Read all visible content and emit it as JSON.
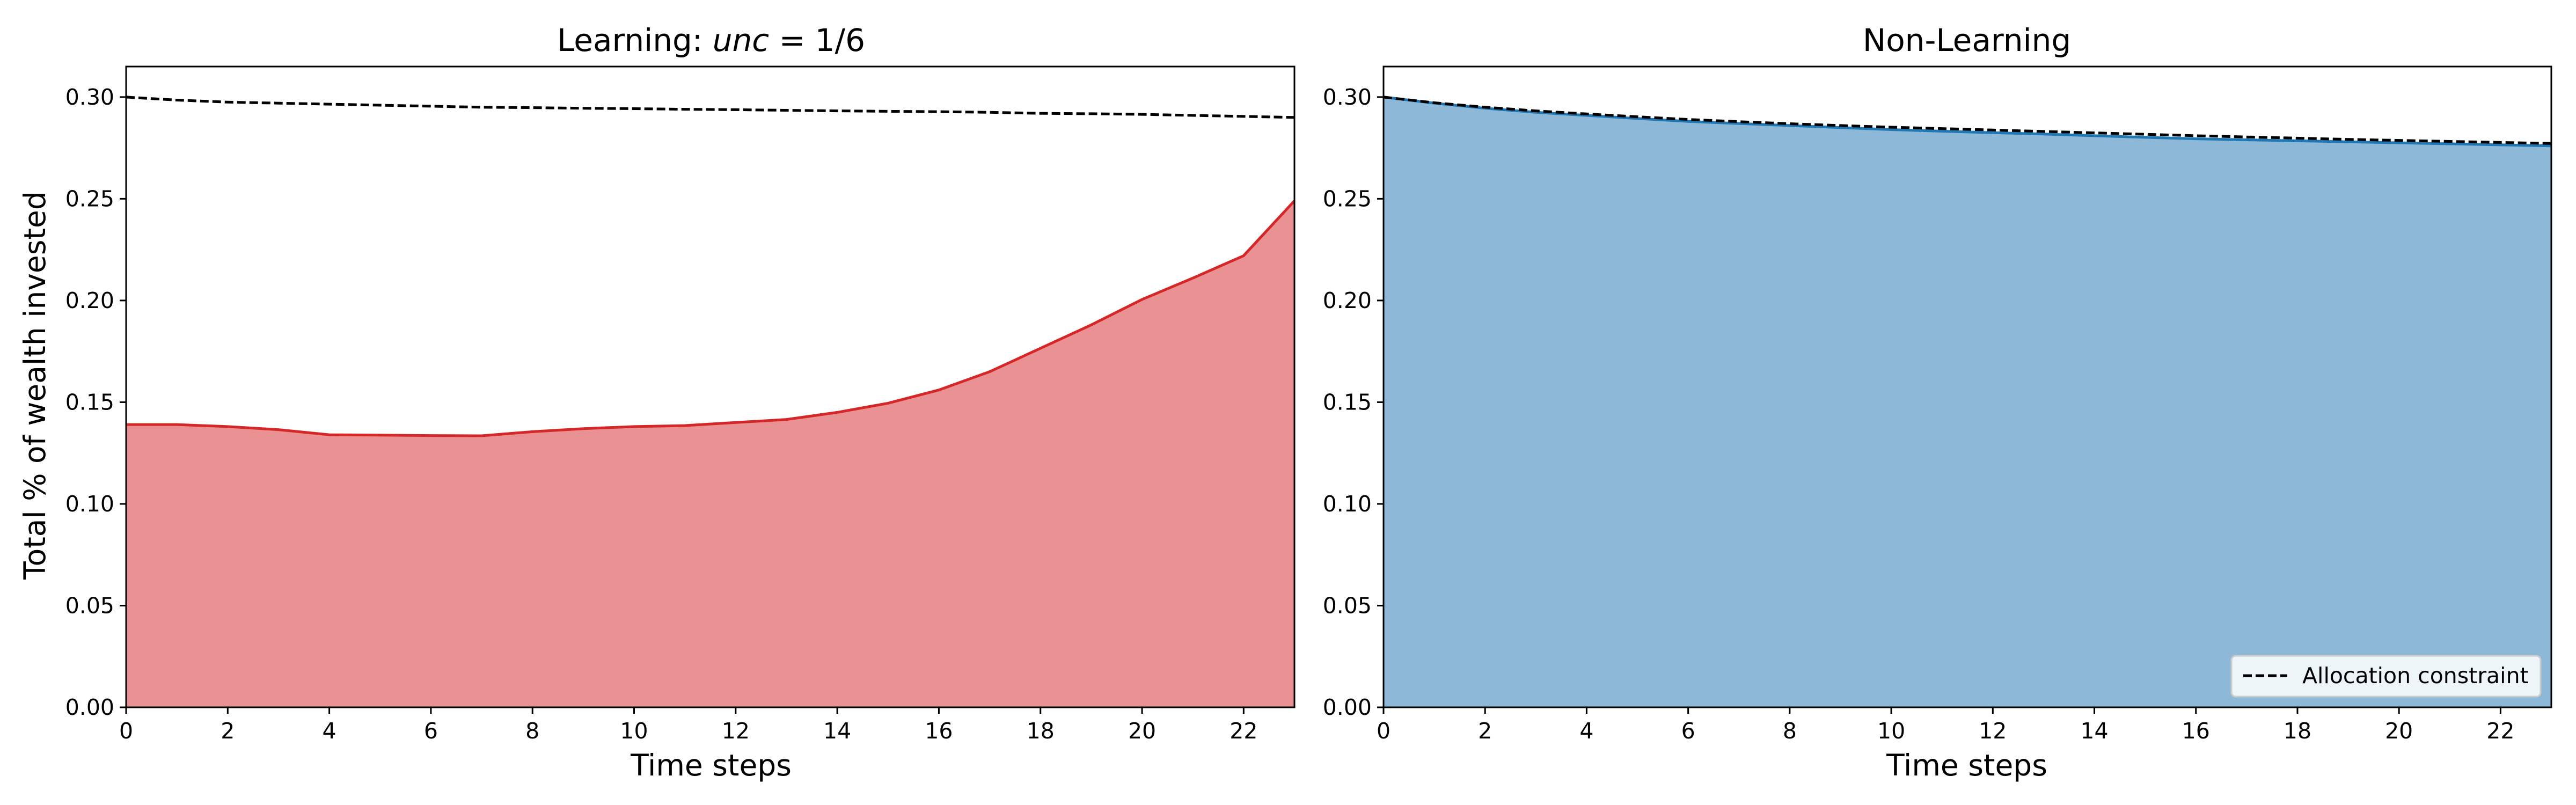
{
  "chart_data": [
    {
      "type": "area",
      "title_prefix": "Learning: ",
      "title_italic": "unc",
      "title_suffix": " = 1/6",
      "xlabel": "Time steps",
      "ylabel": "Total % of wealth invested",
      "xlim": [
        0,
        23
      ],
      "ylim": [
        0,
        0.315
      ],
      "xticks": [
        "0",
        "2",
        "4",
        "6",
        "8",
        "10",
        "12",
        "14",
        "16",
        "18",
        "20",
        "22"
      ],
      "yticks": [
        "0.00",
        "0.05",
        "0.10",
        "0.15",
        "0.20",
        "0.25",
        "0.30"
      ],
      "x": [
        0,
        1,
        2,
        3,
        4,
        5,
        6,
        7,
        8,
        9,
        10,
        11,
        12,
        13,
        14,
        15,
        16,
        17,
        18,
        19,
        20,
        21,
        22,
        23
      ],
      "series": [
        {
          "kind": "area",
          "color": "#d62728",
          "fill": "#ea9193",
          "values": [
            0.139,
            0.139,
            0.138,
            0.1365,
            0.134,
            0.1338,
            0.1336,
            0.1335,
            0.1355,
            0.137,
            0.138,
            0.1385,
            0.14,
            0.1415,
            0.145,
            0.1495,
            0.156,
            0.165,
            0.1765,
            0.188,
            0.2005,
            0.211,
            0.222,
            0.249
          ]
        },
        {
          "kind": "dashed",
          "color": "#000000",
          "values": [
            0.3,
            0.2985,
            0.2975,
            0.297,
            0.2965,
            0.296,
            0.2955,
            0.295,
            0.2948,
            0.2945,
            0.2943,
            0.294,
            0.2938,
            0.2935,
            0.2932,
            0.293,
            0.2928,
            0.2925,
            0.292,
            0.2918,
            0.2915,
            0.291,
            0.2905,
            0.29
          ]
        }
      ]
    },
    {
      "type": "area",
      "title_prefix": "Non-Learning",
      "title_italic": "",
      "title_suffix": "",
      "xlabel": "Time steps",
      "ylabel": "",
      "xlim": [
        0,
        23
      ],
      "ylim": [
        0,
        0.315
      ],
      "xticks": [
        "0",
        "2",
        "4",
        "6",
        "8",
        "10",
        "12",
        "14",
        "16",
        "18",
        "20",
        "22"
      ],
      "yticks": [
        "0.00",
        "0.05",
        "0.10",
        "0.15",
        "0.20",
        "0.25",
        "0.30"
      ],
      "x": [
        0,
        1,
        2,
        3,
        4,
        5,
        6,
        7,
        8,
        9,
        10,
        11,
        12,
        13,
        14,
        15,
        16,
        17,
        18,
        19,
        20,
        21,
        22,
        23
      ],
      "legend": {
        "placement": "lower-right",
        "entries": [
          "Allocation constraint"
        ]
      },
      "series": [
        {
          "kind": "area",
          "color": "#1f77b4",
          "fill": "#8db8d8",
          "values": [
            0.3,
            0.297,
            0.2945,
            0.2925,
            0.291,
            0.2895,
            0.288,
            0.287,
            0.286,
            0.285,
            0.284,
            0.2832,
            0.2825,
            0.2818,
            0.281,
            0.2802,
            0.2795,
            0.279,
            0.2785,
            0.278,
            0.2775,
            0.277,
            0.2765,
            0.276
          ]
        },
        {
          "kind": "dashed",
          "name": "Allocation constraint",
          "color": "#000000",
          "values": [
            0.3,
            0.2972,
            0.295,
            0.2932,
            0.2917,
            0.2903,
            0.289,
            0.2879,
            0.2869,
            0.286,
            0.2852,
            0.2845,
            0.2838,
            0.2831,
            0.2824,
            0.2817,
            0.281,
            0.2804,
            0.2798,
            0.2792,
            0.2787,
            0.2782,
            0.2777,
            0.2772
          ]
        }
      ]
    }
  ]
}
